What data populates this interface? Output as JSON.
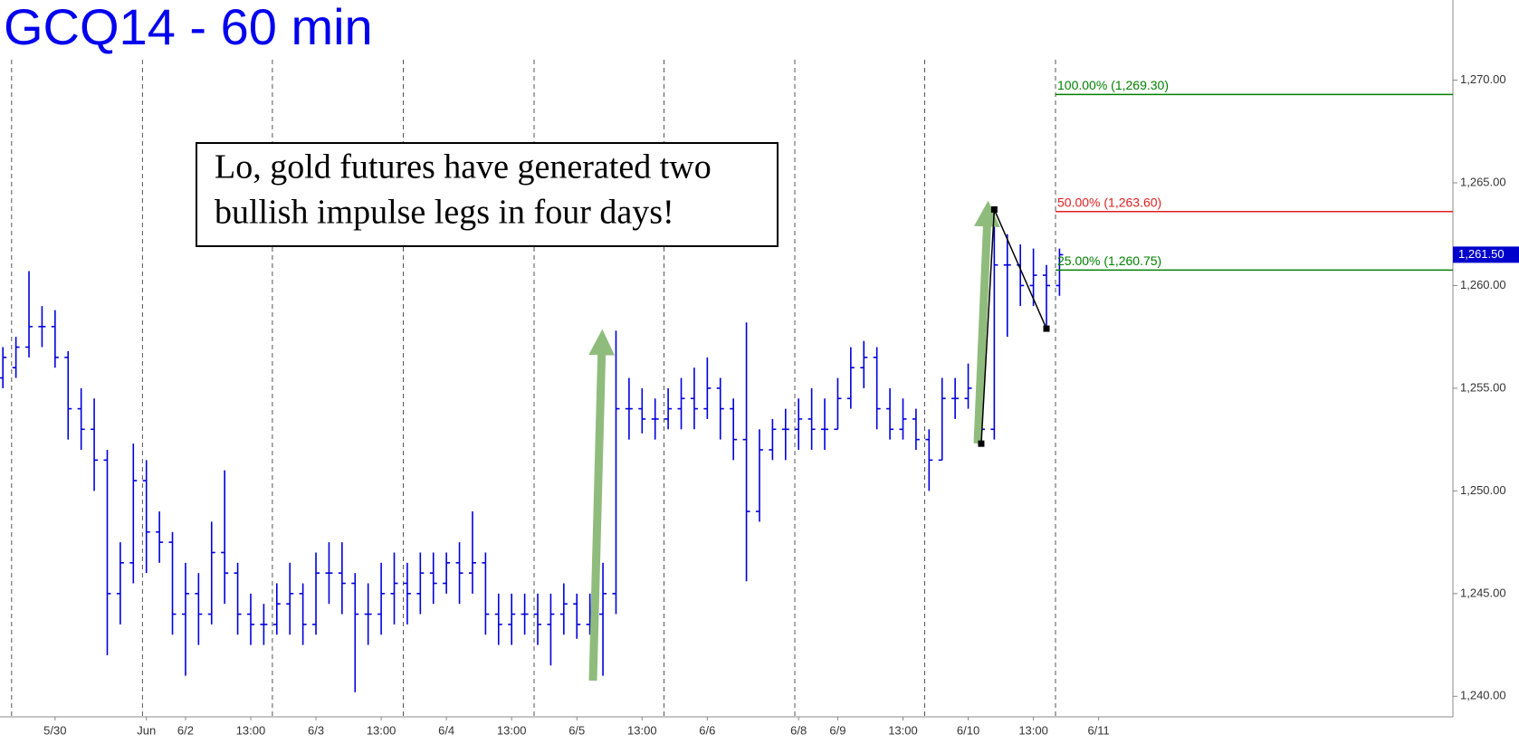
{
  "chart_data": {
    "type": "ohlc",
    "title": "GCQ14 - 60 min",
    "color": "#0000dd",
    "annotation": [
      "Lo, gold futures have generated two",
      "bullish impulse legs in four days!"
    ],
    "categories": [
      null,
      null,
      null,
      null,
      "5/30",
      null,
      null,
      null,
      null,
      null,
      null,
      "Jun",
      null,
      null,
      "6/2",
      null,
      null,
      null,
      null,
      "13:00",
      null,
      null,
      null,
      null,
      "6/3",
      null,
      null,
      null,
      null,
      "13:00",
      null,
      null,
      null,
      null,
      "6/4",
      null,
      null,
      null,
      null,
      "13:00",
      null,
      null,
      null,
      null,
      "6/5",
      null,
      null,
      null,
      null,
      "13:00",
      null,
      null,
      null,
      null,
      "6/6",
      null,
      null,
      null,
      null,
      null,
      null,
      "6/8",
      null,
      null,
      "6/9",
      null,
      null,
      null,
      null,
      "13:00",
      null,
      null,
      null,
      null,
      "6/10",
      null,
      null,
      null,
      null,
      "13:00",
      null,
      null,
      null,
      null,
      "6/11"
    ],
    "open": [
      1255.5,
      1256,
      1257,
      1258,
      1258,
      1256.5,
      1254,
      1253,
      1251.5,
      1245,
      1246.5,
      1250.5,
      1248,
      1247.5,
      1244,
      1245,
      1244,
      1247,
      1246,
      1244,
      1243.5,
      1243.5,
      1244.5,
      1245,
      1243.5,
      1246,
      1246,
      1245.5,
      1244,
      1244,
      1245,
      1245.5,
      1245,
      1246,
      1245.5,
      1246.5,
      1246,
      1246.5,
      1244,
      1243.5,
      1244,
      1244,
      1243.5,
      1244,
      1244.5,
      1243.5,
      1244,
      1245,
      1254,
      1254,
      1253.5,
      1253.5,
      1254,
      1254.5,
      1254,
      1255,
      1254,
      1252.5,
      1249,
      1252,
      1253,
      1253,
      1253.5,
      1253,
      1253,
      1254.5,
      1256,
      1256.5,
      1254,
      1253,
      1253.5,
      1252.5,
      1251.5,
      1254.5,
      1254.5,
      1255,
      1253,
      1261,
      1261,
      1260,
      1260.5,
      1260,
      null,
      null,
      null
    ],
    "high": [
      1257,
      1257.5,
      1260.7,
      1259,
      1258.8,
      1256.8,
      1255,
      1254.5,
      1252,
      1247.5,
      1252.3,
      1251.5,
      1249,
      1248,
      1246.5,
      1246,
      1248.5,
      1251,
      1246.5,
      1245,
      1244.5,
      1245.5,
      1246.5,
      1245.5,
      1247,
      1247.5,
      1247.5,
      1246,
      1245.5,
      1246.5,
      1247,
      1246.5,
      1247,
      1247,
      1247,
      1247.5,
      1249,
      1247,
      1245,
      1245,
      1245,
      1245,
      1245,
      1245.5,
      1245,
      1245,
      1246.5,
      1257.8,
      1255.5,
      1255,
      1254.5,
      1255,
      1255.5,
      1256,
      1256.5,
      1255.5,
      1254.5,
      1258.2,
      1253,
      1253.5,
      1254,
      1254.5,
      1255,
      1254.5,
      1255.5,
      1257,
      1257.3,
      1257,
      1255,
      1254.5,
      1254,
      1253,
      1255.5,
      1255.5,
      1256.2,
      1255.5,
      1263.6,
      1262.5,
      1262,
      1261.8,
      1261,
      1261.8,
      null,
      null,
      null
    ],
    "low": [
      1255,
      1255.5,
      1256.5,
      1257,
      1256,
      1252.5,
      1252,
      1250,
      1242,
      1243.5,
      1245.5,
      1246,
      1246.5,
      1243,
      1241,
      1242.5,
      1243.5,
      1244.5,
      1243,
      1242.5,
      1242.5,
      1243,
      1243,
      1242.5,
      1243,
      1244.5,
      1244,
      1240.2,
      1242.5,
      1243,
      1243.5,
      1243.5,
      1244,
      1244.5,
      1245,
      1244.5,
      1245,
      1243,
      1242.5,
      1242.5,
      1243,
      1242.5,
      1241.5,
      1243,
      1242.8,
      1243,
      1241,
      1244,
      1252.5,
      1252.8,
      1252.5,
      1253,
      1253,
      1253,
      1253.5,
      1252.5,
      1251.5,
      1245.6,
      1248.5,
      1251.5,
      1251.5,
      1252,
      1252,
      1252,
      1253,
      1254,
      1255,
      1253,
      1252.5,
      1252.5,
      1252,
      1250,
      1251.5,
      1253.5,
      1254,
      1252.3,
      1252.5,
      1257.5,
      1259,
      1259,
      1257.8,
      1259.5,
      null,
      null,
      null
    ],
    "close": [
      1256.5,
      1257,
      1258,
      1258,
      1256.5,
      1254,
      1253,
      1251.5,
      1245,
      1246.5,
      1250.5,
      1248,
      1247.5,
      1244,
      1245,
      1244,
      1247,
      1246,
      1244,
      1243.5,
      1243.5,
      1244.5,
      1245,
      1243.5,
      1246,
      1246,
      1245.5,
      1244,
      1244,
      1245,
      1245.5,
      1245,
      1246,
      1245.5,
      1246.5,
      1246,
      1246.5,
      1244,
      1243.5,
      1244,
      1244,
      1243.5,
      1244,
      1244.5,
      1243.5,
      1244,
      1245,
      1254,
      1254,
      1253.5,
      1253.5,
      1254,
      1254.5,
      1254,
      1255,
      1254,
      1252.5,
      1249,
      1252,
      1253,
      1253,
      1253.5,
      1253,
      1253,
      1254.5,
      1256,
      1256.5,
      1254,
      1253,
      1253.5,
      1252.5,
      1251.5,
      1254.5,
      1254.5,
      1255,
      1253,
      1261,
      1261,
      1260,
      1260.5,
      1260,
      1261.5,
      null,
      null,
      null
    ],
    "ylim": [
      1239,
      1273.9
    ],
    "yticks": [
      {
        "value": 1240,
        "label": "1,240.00"
      },
      {
        "value": 1245,
        "label": "1,245.00"
      },
      {
        "value": 1250,
        "label": "1,250.00"
      },
      {
        "value": 1255,
        "label": "1,255.00"
      },
      {
        "value": 1260,
        "label": "1,260.00"
      },
      {
        "value": 1265,
        "label": "1,265.00"
      },
      {
        "value": 1270,
        "label": "1,270.00"
      }
    ],
    "last_price": {
      "value": 1261.5,
      "label": "1,261.50"
    },
    "fib_levels": [
      {
        "label": "100.00% (1,269.30)",
        "value": 1269.3,
        "color": "#008000"
      },
      {
        "label": "50.00% (1,263.60)",
        "value": 1263.6,
        "color": "#e02020"
      },
      {
        "label": "25.00% (1,260.75)",
        "value": 1260.75,
        "color": "#008000"
      }
    ],
    "zigzag": {
      "x": [
        75,
        76,
        80
      ],
      "values": [
        1252.3,
        1263.7,
        1257.9
      ],
      "color": "#000000"
    }
  }
}
